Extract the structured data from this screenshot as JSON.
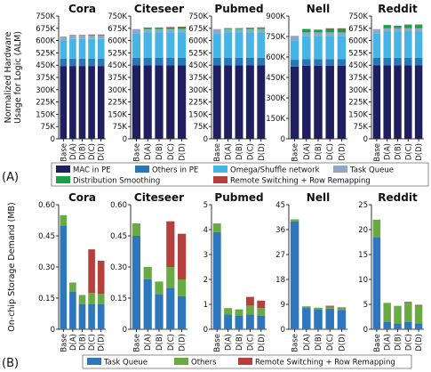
{
  "panel_a_label": "(A)",
  "panel_b_label": "(B)",
  "chart_data": [
    {
      "type": "bar",
      "stacked": true,
      "title": "Cora",
      "ylabel": "Normalized Hardware\nUsage for Logic (ALM)",
      "categories": [
        "Base",
        "D(A)",
        "D(B)",
        "D(C)",
        "D(D)"
      ],
      "ylim": [
        0,
        750000
      ],
      "yticks": [
        0,
        75000,
        150000,
        225000,
        300000,
        375000,
        450000,
        525000,
        600000,
        675000,
        750000
      ],
      "ytick_labels": [
        "0",
        "75K",
        "150K",
        "225K",
        "300K",
        "375K",
        "450K",
        "525K",
        "600K",
        "675K",
        "750K"
      ],
      "series": [
        {
          "name": "MAC in PE",
          "values": [
            445000,
            445000,
            445000,
            445000,
            445000
          ]
        },
        {
          "name": "Others in PE",
          "values": [
            45000,
            45000,
            45000,
            45000,
            45000
          ]
        },
        {
          "name": "Omega/Shuffle network",
          "values": [
            110000,
            120000,
            120000,
            120000,
            120000
          ]
        },
        {
          "name": "Task Queue",
          "values": [
            25000,
            20000,
            20000,
            20000,
            20000
          ]
        },
        {
          "name": "Distribution Smoothing",
          "values": [
            0,
            4000,
            4000,
            4000,
            4000
          ]
        },
        {
          "name": "Remote Switching + Row Remapping",
          "values": [
            0,
            0,
            0,
            3000,
            3000
          ]
        }
      ],
      "legend": "bottom"
    },
    {
      "type": "bar",
      "stacked": true,
      "title": "Citeseer",
      "categories": [
        "Base",
        "D(A)",
        "D(B)",
        "D(C)",
        "D(D)"
      ],
      "ylim": [
        0,
        750000
      ],
      "yticks": [
        0,
        75000,
        150000,
        225000,
        300000,
        375000,
        450000,
        525000,
        600000,
        675000,
        750000
      ],
      "ytick_labels": [
        "0",
        "75K",
        "150K",
        "225K",
        "300K",
        "375K",
        "450K",
        "525K",
        "600K",
        "675K",
        "750K"
      ],
      "series": [
        {
          "name": "MAC in PE",
          "values": [
            450000,
            450000,
            450000,
            450000,
            450000
          ]
        },
        {
          "name": "Others in PE",
          "values": [
            45000,
            45000,
            45000,
            45000,
            45000
          ]
        },
        {
          "name": "Omega/Shuffle network",
          "values": [
            150000,
            155000,
            155000,
            155000,
            155000
          ]
        },
        {
          "name": "Task Queue",
          "values": [
            25000,
            20000,
            20000,
            20000,
            20000
          ]
        },
        {
          "name": "Distribution Smoothing",
          "values": [
            0,
            10000,
            10000,
            10000,
            12000
          ]
        },
        {
          "name": "Remote Switching + Row Remapping",
          "values": [
            0,
            0,
            0,
            3000,
            3000
          ]
        }
      ]
    },
    {
      "type": "bar",
      "stacked": true,
      "title": "Pubmed",
      "categories": [
        "Base",
        "D(A)",
        "D(B)",
        "D(C)",
        "D(D)"
      ],
      "ylim": [
        0,
        750000
      ],
      "yticks": [
        0,
        75000,
        150000,
        225000,
        300000,
        375000,
        450000,
        525000,
        600000,
        675000,
        750000
      ],
      "ytick_labels": [
        "0",
        "75K",
        "150K",
        "225K",
        "300K",
        "375K",
        "450K",
        "525K",
        "600K",
        "675K",
        "750K"
      ],
      "series": [
        {
          "name": "MAC in PE",
          "values": [
            450000,
            450000,
            450000,
            450000,
            450000
          ]
        },
        {
          "name": "Others in PE",
          "values": [
            45000,
            45000,
            45000,
            45000,
            45000
          ]
        },
        {
          "name": "Omega/Shuffle network",
          "values": [
            150000,
            155000,
            155000,
            155000,
            155000
          ]
        },
        {
          "name": "Task Queue",
          "values": [
            25000,
            20000,
            20000,
            20000,
            20000
          ]
        },
        {
          "name": "Distribution Smoothing",
          "values": [
            0,
            6000,
            6000,
            6000,
            8000
          ]
        },
        {
          "name": "Remote Switching + Row Remapping",
          "values": [
            0,
            0,
            0,
            3000,
            3000
          ]
        }
      ]
    },
    {
      "type": "bar",
      "stacked": true,
      "title": "Nell",
      "categories": [
        "Base",
        "D(A)",
        "D(B)",
        "D(C)",
        "D(D)"
      ],
      "ylim": [
        0,
        900000
      ],
      "yticks": [
        0,
        150000,
        300000,
        450000,
        600000,
        750000,
        900000
      ],
      "ytick_labels": [
        "0",
        "150K",
        "300K",
        "450K",
        "600K",
        "750K",
        "900K"
      ],
      "series": [
        {
          "name": "MAC in PE",
          "values": [
            530000,
            535000,
            535000,
            535000,
            535000
          ]
        },
        {
          "name": "Others in PE",
          "values": [
            50000,
            50000,
            50000,
            50000,
            50000
          ]
        },
        {
          "name": "Omega/Shuffle network",
          "values": [
            140000,
            170000,
            170000,
            170000,
            170000
          ]
        },
        {
          "name": "Task Queue",
          "values": [
            35000,
            25000,
            25000,
            25000,
            25000
          ]
        },
        {
          "name": "Distribution Smoothing",
          "values": [
            0,
            25000,
            20000,
            25000,
            25000
          ]
        },
        {
          "name": "Remote Switching + Row Remapping",
          "values": [
            0,
            0,
            0,
            5000,
            5000
          ]
        }
      ]
    },
    {
      "type": "bar",
      "stacked": true,
      "title": "Reddit",
      "categories": [
        "Base",
        "D(A)",
        "D(B)",
        "D(C)",
        "D(D)"
      ],
      "ylim": [
        0,
        750000
      ],
      "yticks": [
        0,
        75000,
        150000,
        225000,
        300000,
        375000,
        450000,
        525000,
        600000,
        675000,
        750000
      ],
      "ytick_labels": [
        "0",
        "75K",
        "150K",
        "225K",
        "300K",
        "375K",
        "450K",
        "525K",
        "600K",
        "675K",
        "750K"
      ],
      "series": [
        {
          "name": "MAC in PE",
          "values": [
            450000,
            450000,
            450000,
            450000,
            450000
          ]
        },
        {
          "name": "Others in PE",
          "values": [
            45000,
            45000,
            45000,
            45000,
            45000
          ]
        },
        {
          "name": "Omega/Shuffle network",
          "values": [
            150000,
            160000,
            160000,
            160000,
            160000
          ]
        },
        {
          "name": "Task Queue",
          "values": [
            25000,
            20000,
            20000,
            20000,
            20000
          ]
        },
        {
          "name": "Distribution Smoothing",
          "values": [
            0,
            20000,
            16000,
            20000,
            20000
          ]
        },
        {
          "name": "Remote Switching + Row Remapping",
          "values": [
            0,
            0,
            0,
            3000,
            3000
          ]
        }
      ]
    },
    {
      "type": "bar",
      "stacked": true,
      "title": "Cora",
      "ylabel": "On-chip Storage Demand (MB)",
      "categories": [
        "Base",
        "D(A)",
        "D(B)",
        "D(C)",
        "D(D)"
      ],
      "ylim": [
        0,
        0.6
      ],
      "yticks": [
        0,
        0.15,
        0.3,
        0.45,
        0.6
      ],
      "ytick_labels": [
        "0",
        "0.15",
        "0.30",
        "0.45",
        "0.60"
      ],
      "series": [
        {
          "name": "Task Queue",
          "values": [
            0.5,
            0.18,
            0.12,
            0.12,
            0.12
          ]
        },
        {
          "name": "Others",
          "values": [
            0.05,
            0.045,
            0.045,
            0.055,
            0.05
          ]
        },
        {
          "name": "Remote Switching + Row Remapping",
          "values": [
            0,
            0,
            0,
            0.21,
            0.16
          ]
        }
      ],
      "legend": "bottom"
    },
    {
      "type": "bar",
      "stacked": true,
      "title": "Citeseer",
      "categories": [
        "Base",
        "D(A)",
        "D(B)",
        "D(C)",
        "D(D)"
      ],
      "ylim": [
        0,
        0.6
      ],
      "yticks": [
        0,
        0.15,
        0.3,
        0.45,
        0.6
      ],
      "ytick_labels": [
        "0",
        "0.15",
        "0.30",
        "0.45",
        "0.60"
      ],
      "series": [
        {
          "name": "Task Queue",
          "values": [
            0.45,
            0.24,
            0.17,
            0.2,
            0.16
          ]
        },
        {
          "name": "Others",
          "values": [
            0.06,
            0.06,
            0.06,
            0.1,
            0.08
          ]
        },
        {
          "name": "Remote Switching + Row Remapping",
          "values": [
            0,
            0,
            0,
            0.22,
            0.22
          ]
        }
      ]
    },
    {
      "type": "bar",
      "stacked": true,
      "title": "Pubmed",
      "categories": [
        "Base",
        "D(A)",
        "D(B)",
        "D(C)",
        "D(D)"
      ],
      "ylim": [
        0,
        5
      ],
      "yticks": [
        0,
        1,
        2,
        3,
        4,
        5
      ],
      "ytick_labels": [
        "0",
        "1",
        "2",
        "3",
        "4",
        "5"
      ],
      "series": [
        {
          "name": "Task Queue",
          "values": [
            3.9,
            0.6,
            0.55,
            0.6,
            0.55
          ]
        },
        {
          "name": "Others",
          "values": [
            0.35,
            0.25,
            0.25,
            0.35,
            0.3
          ]
        },
        {
          "name": "Remote Switching + Row Remapping",
          "values": [
            0,
            0,
            0,
            0.35,
            0.3
          ]
        }
      ]
    },
    {
      "type": "bar",
      "stacked": true,
      "title": "Nell",
      "categories": [
        "Base",
        "D(A)",
        "D(B)",
        "D(C)",
        "D(D)"
      ],
      "ylim": [
        0,
        45
      ],
      "yticks": [
        0,
        9,
        18,
        27,
        36,
        45
      ],
      "ytick_labels": [
        "0",
        "9",
        "18",
        "27",
        "36",
        "45"
      ],
      "series": [
        {
          "name": "Task Queue",
          "values": [
            39,
            7.7,
            7.2,
            7.5,
            7.0
          ]
        },
        {
          "name": "Others",
          "values": [
            0.7,
            0.6,
            0.6,
            0.7,
            0.6
          ]
        },
        {
          "name": "Remote Switching + Row Remapping",
          "values": [
            0,
            0,
            0,
            0.3,
            0.3
          ]
        }
      ]
    },
    {
      "type": "bar",
      "stacked": true,
      "title": "Reddit",
      "categories": [
        "Base",
        "D(A)",
        "D(B)",
        "D(C)",
        "D(D)"
      ],
      "ylim": [
        0,
        25
      ],
      "yticks": [
        0,
        5,
        10,
        15,
        20,
        25
      ],
      "ytick_labels": [
        "0",
        "5",
        "10",
        "15",
        "20",
        "25"
      ],
      "series": [
        {
          "name": "Task Queue",
          "values": [
            18.5,
            1.5,
            1.2,
            1.5,
            1.2
          ]
        },
        {
          "name": "Others",
          "values": [
            3.5,
            3.8,
            3.5,
            3.8,
            3.5
          ]
        },
        {
          "name": "Remote Switching + Row Remapping",
          "values": [
            0,
            0,
            0,
            0.2,
            0.2
          ]
        }
      ]
    }
  ],
  "legend_a": [
    {
      "label": "MAC in PE",
      "color": "#1f1f5f"
    },
    {
      "label": "Others in PE",
      "color": "#2878b8"
    },
    {
      "label": "Omega/Shuffle network",
      "color": "#46b4e4"
    },
    {
      "label": "Task Queue",
      "color": "#8fa8c6"
    },
    {
      "label": "Distribution Smoothing",
      "color": "#17a24a"
    },
    {
      "label": "Remote Switching + Row Remapping",
      "color": "#b5403e"
    }
  ],
  "legend_b": [
    {
      "label": "Task Queue",
      "color": "#2f77bd"
    },
    {
      "label": "Others",
      "color": "#6aaa42"
    },
    {
      "label": "Remote Switching + Row Remapping",
      "color": "#b5403e"
    }
  ],
  "colors_a": [
    "#1f1f5f",
    "#2878b8",
    "#46b4e4",
    "#8fa8c6",
    "#17a24a",
    "#b5403e"
  ],
  "colors_b": [
    "#2f77bd",
    "#6aaa42",
    "#b5403e"
  ]
}
